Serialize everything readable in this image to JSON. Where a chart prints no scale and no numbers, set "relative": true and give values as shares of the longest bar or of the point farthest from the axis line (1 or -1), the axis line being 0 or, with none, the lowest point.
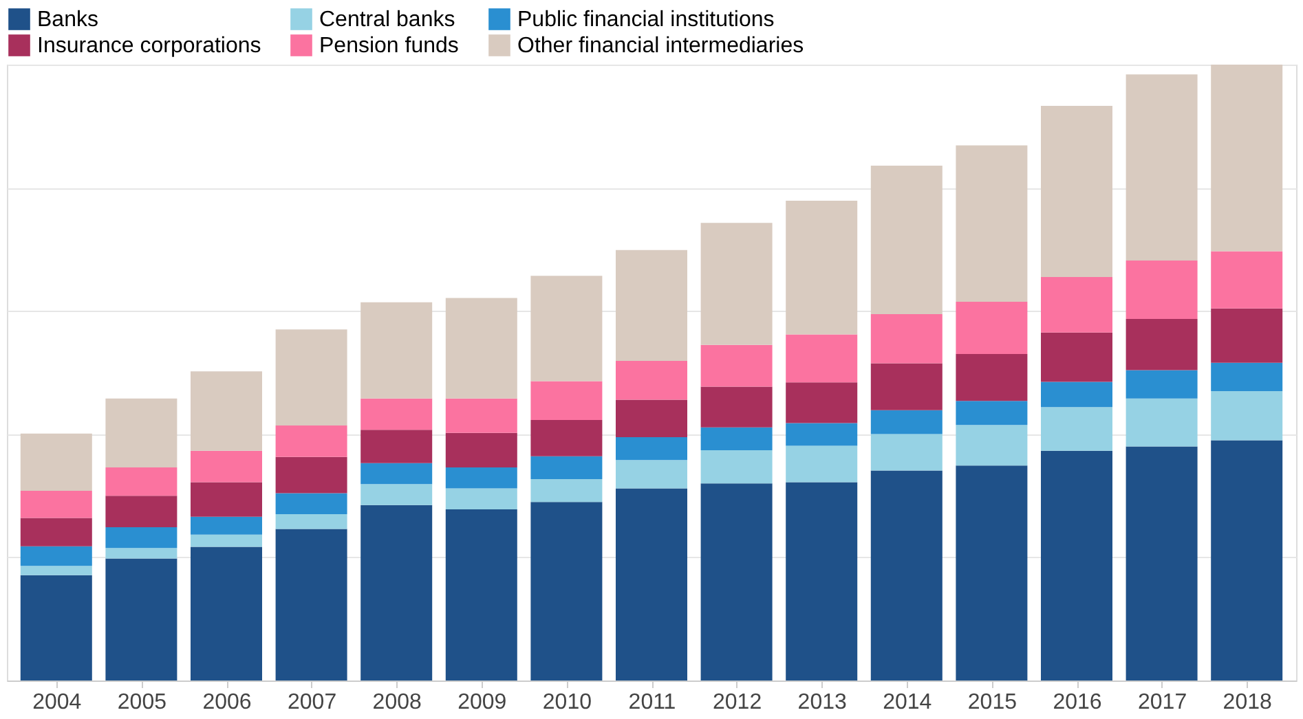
{
  "chart_data": {
    "type": "bar",
    "stacked": true,
    "relative": true,
    "grid": "y",
    "legend": "top left",
    "categories": [
      "2004",
      "2005",
      "2006",
      "2007",
      "2008",
      "2009",
      "2010",
      "2011",
      "2012",
      "2013",
      "2014",
      "2015",
      "2016",
      "2017",
      "2018"
    ],
    "series": [
      {
        "name": "Banks",
        "color": "#1f5189",
        "values": [
          0.171,
          0.198,
          0.217,
          0.246,
          0.285,
          0.278,
          0.29,
          0.312,
          0.32,
          0.322,
          0.341,
          0.349,
          0.373,
          0.38,
          0.39
        ]
      },
      {
        "name": "Central banks",
        "color": "#96d2e4",
        "values": [
          0.015,
          0.017,
          0.02,
          0.024,
          0.034,
          0.034,
          0.037,
          0.046,
          0.054,
          0.059,
          0.059,
          0.066,
          0.071,
          0.078,
          0.08
        ]
      },
      {
        "name": "Public financial institutions",
        "color": "#2a8fd1",
        "values": [
          0.032,
          0.034,
          0.029,
          0.034,
          0.034,
          0.034,
          0.037,
          0.037,
          0.037,
          0.037,
          0.039,
          0.039,
          0.041,
          0.046,
          0.046
        ]
      },
      {
        "name": "Insurance corporations",
        "color": "#a8305c",
        "values": [
          0.046,
          0.051,
          0.056,
          0.059,
          0.054,
          0.056,
          0.059,
          0.061,
          0.066,
          0.066,
          0.076,
          0.076,
          0.08,
          0.083,
          0.088
        ]
      },
      {
        "name": "Pension funds",
        "color": "#fb73a0",
        "values": [
          0.044,
          0.046,
          0.051,
          0.051,
          0.051,
          0.056,
          0.063,
          0.063,
          0.068,
          0.078,
          0.08,
          0.085,
          0.09,
          0.095,
          0.093
        ]
      },
      {
        "name": "Other financial intermediaries",
        "color": "#d9cbc0",
        "values": [
          0.093,
          0.112,
          0.129,
          0.156,
          0.156,
          0.163,
          0.171,
          0.18,
          0.198,
          0.217,
          0.241,
          0.254,
          0.278,
          0.302,
          0.303
        ]
      }
    ]
  }
}
